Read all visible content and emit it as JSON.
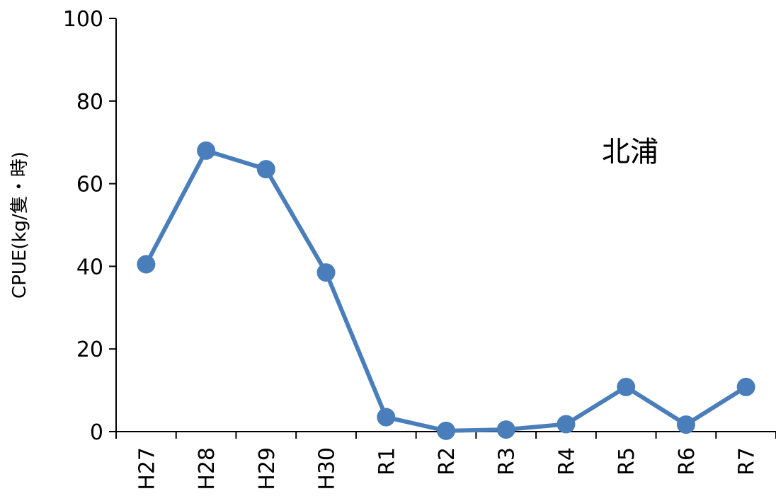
{
  "chart_data": {
    "type": "line",
    "categories": [
      "H27",
      "H28",
      "H29",
      "H30",
      "R1",
      "R2",
      "R3",
      "R4",
      "R5",
      "R6",
      "R7"
    ],
    "series": [
      {
        "values": [
          40.5,
          68.0,
          63.5,
          38.5,
          3.5,
          0.2,
          0.5,
          1.8,
          10.8,
          1.7,
          10.8
        ]
      }
    ],
    "ylabel": "CPUE(kg/隻・時)",
    "ylim": [
      0,
      100
    ],
    "yticks": [
      0,
      20,
      40,
      60,
      80,
      100
    ],
    "annotation": "北浦",
    "series_color": "#4a7ebb",
    "grid": false,
    "legend": "none"
  }
}
